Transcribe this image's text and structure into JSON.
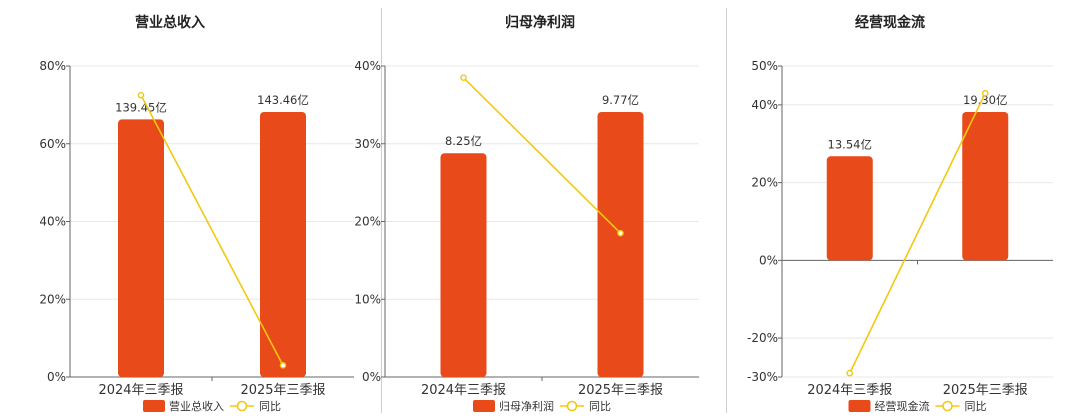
{
  "colors": {
    "bar": "#E84A1A",
    "line": "#F2C811",
    "grid": "#e8e8e8",
    "axis": "#666666"
  },
  "chart_data": [
    {
      "type": "bar",
      "title": "营业总收入",
      "categories": [
        "2024年三季报",
        "2025年三季报"
      ],
      "series": [
        {
          "name": "营业总收入",
          "type": "bar",
          "values": [
            139.45,
            143.46
          ],
          "value_labels": [
            "139.45亿",
            "143.46亿"
          ]
        },
        {
          "name": "同比",
          "type": "line",
          "values": [
            72.5,
            3.0
          ]
        }
      ],
      "ylim": [
        0,
        80
      ],
      "yticks": [
        "0%",
        "20%",
        "40%",
        "60%",
        "80%"
      ],
      "legend": "bottom",
      "grid": true
    },
    {
      "type": "bar",
      "title": "归母净利润",
      "categories": [
        "2024年三季报",
        "2025年三季报"
      ],
      "series": [
        {
          "name": "归母净利润",
          "type": "bar",
          "values": [
            8.25,
            9.77
          ],
          "value_labels": [
            "8.25亿",
            "9.77亿"
          ]
        },
        {
          "name": "同比",
          "type": "line",
          "values": [
            38.5,
            18.5
          ]
        }
      ],
      "ylim": [
        0,
        40
      ],
      "yticks": [
        "0%",
        "10%",
        "20%",
        "30%",
        "40%"
      ],
      "legend": "bottom",
      "grid": true
    },
    {
      "type": "bar",
      "title": "经营现金流",
      "categories": [
        "2024年三季报",
        "2025年三季报"
      ],
      "series": [
        {
          "name": "经营现金流",
          "type": "bar",
          "values": [
            13.54,
            19.3
          ],
          "value_labels": [
            "13.54亿",
            "19.30亿"
          ]
        },
        {
          "name": "同比",
          "type": "line",
          "values": [
            -29,
            43
          ]
        }
      ],
      "ylim": [
        -30,
        50
      ],
      "yticks": [
        "-30%",
        "-20%",
        "0%",
        "20%",
        "40%",
        "50%"
      ],
      "legend": "bottom",
      "grid": true
    }
  ]
}
